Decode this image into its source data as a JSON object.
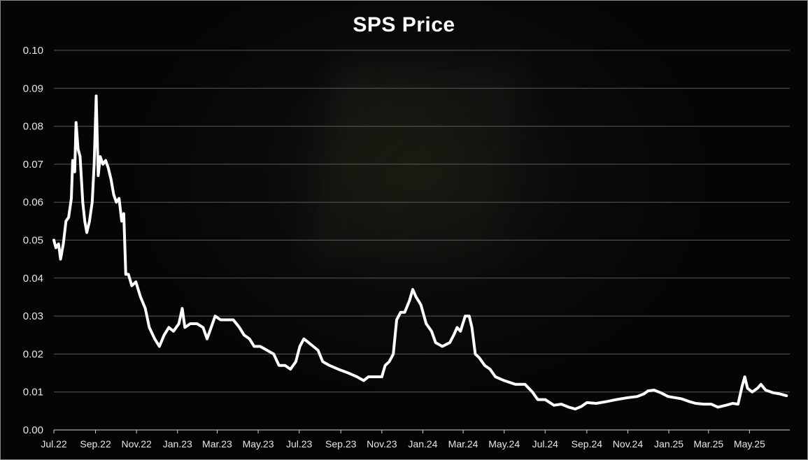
{
  "chart_data": {
    "type": "line",
    "title": "SPS Price",
    "xlabel": "",
    "ylabel": "",
    "ylim": [
      0,
      0.1
    ],
    "grid": "horizontal",
    "legend": "none",
    "colors": {
      "line": "#ffffff",
      "grid": "#5a5a5a",
      "text": "#e6e6e6",
      "background": "#000000"
    },
    "y_ticks": [
      "0.00",
      "0.01",
      "0.02",
      "0.03",
      "0.04",
      "0.05",
      "0.06",
      "0.07",
      "0.08",
      "0.09",
      "0.10"
    ],
    "x_ticks": [
      "Jul.22",
      "Sep.22",
      "Nov.22",
      "Jan.23",
      "Mar.23",
      "May.23",
      "Jul.23",
      "Sep.23",
      "Nov.23",
      "Jan.24",
      "Mar.24",
      "May.24",
      "Jul.24",
      "Sep.24",
      "Nov.24",
      "Jan.25",
      "Mar.25",
      "May.25"
    ],
    "series": [
      {
        "name": "",
        "points": [
          [
            "2022-07-01",
            0.05
          ],
          [
            "2022-07-04",
            0.048
          ],
          [
            "2022-07-08",
            0.049
          ],
          [
            "2022-07-11",
            0.045
          ],
          [
            "2022-07-15",
            0.049
          ],
          [
            "2022-07-19",
            0.055
          ],
          [
            "2022-07-23",
            0.056
          ],
          [
            "2022-07-27",
            0.061
          ],
          [
            "2022-07-29",
            0.071
          ],
          [
            "2022-08-01",
            0.068
          ],
          [
            "2022-08-03",
            0.081
          ],
          [
            "2022-08-06",
            0.074
          ],
          [
            "2022-08-09",
            0.072
          ],
          [
            "2022-08-13",
            0.06
          ],
          [
            "2022-08-16",
            0.055
          ],
          [
            "2022-08-19",
            0.052
          ],
          [
            "2022-08-23",
            0.055
          ],
          [
            "2022-08-27",
            0.06
          ],
          [
            "2022-08-30",
            0.07
          ],
          [
            "2022-09-02",
            0.088
          ],
          [
            "2022-09-05",
            0.067
          ],
          [
            "2022-09-08",
            0.072
          ],
          [
            "2022-09-12",
            0.07
          ],
          [
            "2022-09-16",
            0.071
          ],
          [
            "2022-09-20",
            0.069
          ],
          [
            "2022-09-24",
            0.066
          ],
          [
            "2022-09-28",
            0.062
          ],
          [
            "2022-10-02",
            0.06
          ],
          [
            "2022-10-06",
            0.061
          ],
          [
            "2022-10-10",
            0.055
          ],
          [
            "2022-10-13",
            0.057
          ],
          [
            "2022-10-16",
            0.041
          ],
          [
            "2022-10-20",
            0.041
          ],
          [
            "2022-10-25",
            0.038
          ],
          [
            "2022-10-31",
            0.039
          ],
          [
            "2022-11-07",
            0.035
          ],
          [
            "2022-11-14",
            0.032
          ],
          [
            "2022-11-20",
            0.027
          ],
          [
            "2022-11-28",
            0.024
          ],
          [
            "2022-12-05",
            0.022
          ],
          [
            "2022-12-12",
            0.025
          ],
          [
            "2022-12-19",
            0.027
          ],
          [
            "2022-12-26",
            0.026
          ],
          [
            "2023-01-03",
            0.028
          ],
          [
            "2023-01-08",
            0.032
          ],
          [
            "2023-01-12",
            0.027
          ],
          [
            "2023-01-20",
            0.028
          ],
          [
            "2023-01-30",
            0.028
          ],
          [
            "2023-02-08",
            0.027
          ],
          [
            "2023-02-14",
            0.024
          ],
          [
            "2023-02-20",
            0.027
          ],
          [
            "2023-02-26",
            0.03
          ],
          [
            "2023-03-06",
            0.029
          ],
          [
            "2023-03-15",
            0.029
          ],
          [
            "2023-03-25",
            0.029
          ],
          [
            "2023-04-03",
            0.027
          ],
          [
            "2023-04-10",
            0.025
          ],
          [
            "2023-04-18",
            0.024
          ],
          [
            "2023-04-25",
            0.022
          ],
          [
            "2023-05-04",
            0.022
          ],
          [
            "2023-05-14",
            0.021
          ],
          [
            "2023-05-24",
            0.02
          ],
          [
            "2023-06-01",
            0.017
          ],
          [
            "2023-06-10",
            0.017
          ],
          [
            "2023-06-18",
            0.016
          ],
          [
            "2023-06-26",
            0.018
          ],
          [
            "2023-07-02",
            0.022
          ],
          [
            "2023-07-08",
            0.024
          ],
          [
            "2023-07-15",
            0.023
          ],
          [
            "2023-07-22",
            0.022
          ],
          [
            "2023-07-29",
            0.021
          ],
          [
            "2023-08-05",
            0.018
          ],
          [
            "2023-08-15",
            0.017
          ],
          [
            "2023-08-28",
            0.016
          ],
          [
            "2023-09-12",
            0.015
          ],
          [
            "2023-09-25",
            0.014
          ],
          [
            "2023-10-05",
            0.013
          ],
          [
            "2023-10-12",
            0.014
          ],
          [
            "2023-10-22",
            0.014
          ],
          [
            "2023-11-01",
            0.014
          ],
          [
            "2023-11-06",
            0.017
          ],
          [
            "2023-11-12",
            0.018
          ],
          [
            "2023-11-18",
            0.02
          ],
          [
            "2023-11-23",
            0.029
          ],
          [
            "2023-11-29",
            0.031
          ],
          [
            "2023-12-05",
            0.031
          ],
          [
            "2023-12-12",
            0.034
          ],
          [
            "2023-12-17",
            0.037
          ],
          [
            "2023-12-22",
            0.035
          ],
          [
            "2023-12-29",
            0.033
          ],
          [
            "2024-01-06",
            0.028
          ],
          [
            "2024-01-14",
            0.026
          ],
          [
            "2024-01-20",
            0.023
          ],
          [
            "2024-01-30",
            0.022
          ],
          [
            "2024-02-10",
            0.023
          ],
          [
            "2024-02-16",
            0.025
          ],
          [
            "2024-02-21",
            0.027
          ],
          [
            "2024-02-26",
            0.026
          ],
          [
            "2024-03-04",
            0.03
          ],
          [
            "2024-03-10",
            0.03
          ],
          [
            "2024-03-14",
            0.027
          ],
          [
            "2024-03-19",
            0.02
          ],
          [
            "2024-03-25",
            0.019
          ],
          [
            "2024-04-02",
            0.017
          ],
          [
            "2024-04-10",
            0.016
          ],
          [
            "2024-04-18",
            0.014
          ],
          [
            "2024-05-01",
            0.013
          ],
          [
            "2024-05-18",
            0.012
          ],
          [
            "2024-06-01",
            0.012
          ],
          [
            "2024-06-12",
            0.01
          ],
          [
            "2024-06-20",
            0.008
          ],
          [
            "2024-07-01",
            0.008
          ],
          [
            "2024-07-14",
            0.0065
          ],
          [
            "2024-07-25",
            0.0068
          ],
          [
            "2024-08-05",
            0.006
          ],
          [
            "2024-08-15",
            0.0055
          ],
          [
            "2024-08-24",
            0.0062
          ],
          [
            "2024-09-01",
            0.0072
          ],
          [
            "2024-09-15",
            0.007
          ],
          [
            "2024-10-01",
            0.0075
          ],
          [
            "2024-10-15",
            0.008
          ],
          [
            "2024-11-01",
            0.0085
          ],
          [
            "2024-11-15",
            0.0088
          ],
          [
            "2024-11-25",
            0.0095
          ],
          [
            "2024-12-01",
            0.0103
          ],
          [
            "2024-12-10",
            0.0105
          ],
          [
            "2024-12-20",
            0.0098
          ],
          [
            "2024-12-31",
            0.0088
          ],
          [
            "2025-01-10",
            0.0085
          ],
          [
            "2025-01-20",
            0.0082
          ],
          [
            "2025-01-31",
            0.0075
          ],
          [
            "2025-02-10",
            0.007
          ],
          [
            "2025-02-22",
            0.0068
          ],
          [
            "2025-03-05",
            0.0068
          ],
          [
            "2025-03-15",
            0.006
          ],
          [
            "2025-03-27",
            0.0065
          ],
          [
            "2025-04-06",
            0.007
          ],
          [
            "2025-04-14",
            0.0068
          ],
          [
            "2025-04-20",
            0.0115
          ],
          [
            "2025-04-24",
            0.014
          ],
          [
            "2025-04-28",
            0.011
          ],
          [
            "2025-05-05",
            0.01
          ],
          [
            "2025-05-13",
            0.011
          ],
          [
            "2025-05-18",
            0.012
          ],
          [
            "2025-05-25",
            0.0105
          ],
          [
            "2025-06-05",
            0.0098
          ],
          [
            "2025-06-15",
            0.0095
          ],
          [
            "2025-06-25",
            0.009
          ]
        ]
      }
    ]
  }
}
